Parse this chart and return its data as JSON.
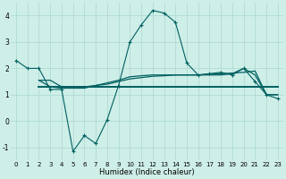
{
  "xlabel": "Humidex (Indice chaleur)",
  "bg_color": "#ceeee8",
  "grid_color": "#aad8d0",
  "line_color": "#006060",
  "xlim": [
    -0.5,
    23.5
  ],
  "ylim": [
    -1.5,
    4.5
  ],
  "yticks": [
    -1,
    0,
    1,
    2,
    3,
    4
  ],
  "xticks": [
    0,
    1,
    2,
    3,
    4,
    5,
    6,
    7,
    8,
    9,
    10,
    11,
    12,
    13,
    14,
    15,
    16,
    17,
    18,
    19,
    20,
    21,
    22,
    23
  ],
  "curve1_x": [
    0,
    1,
    2,
    3,
    4,
    5,
    6,
    7,
    8,
    9,
    10,
    11,
    12,
    13,
    14,
    15,
    16,
    17,
    18,
    19,
    20,
    21,
    22,
    23
  ],
  "curve1_y": [
    2.3,
    2.0,
    2.0,
    1.2,
    1.2,
    -1.15,
    -0.55,
    -0.85,
    0.05,
    1.35,
    3.0,
    3.65,
    4.2,
    4.1,
    3.75,
    2.2,
    1.75,
    1.8,
    1.85,
    1.75,
    2.0,
    1.5,
    1.0,
    0.85
  ],
  "curve2_x": [
    2,
    3,
    4,
    5,
    6,
    7,
    8,
    9,
    10,
    11,
    12,
    13,
    14,
    15,
    16,
    17,
    18,
    19,
    20,
    21,
    22,
    23
  ],
  "curve2_y": [
    1.55,
    1.55,
    1.3,
    1.3,
    1.3,
    1.35,
    1.4,
    1.5,
    1.6,
    1.65,
    1.7,
    1.72,
    1.75,
    1.75,
    1.75,
    1.78,
    1.8,
    1.82,
    1.85,
    1.9,
    1.0,
    1.0
  ],
  "curve3_x": [
    2,
    23
  ],
  "curve3_y": [
    1.3,
    1.3
  ],
  "curve4_x": [
    2,
    3,
    4,
    5,
    6,
    7,
    8,
    9,
    10,
    11,
    12,
    13,
    14,
    15,
    16,
    17,
    18,
    19,
    20,
    21,
    22,
    23
  ],
  "curve4_y": [
    1.55,
    1.3,
    1.25,
    1.25,
    1.25,
    1.35,
    1.45,
    1.55,
    1.68,
    1.72,
    1.75,
    1.75,
    1.75,
    1.75,
    1.75,
    1.75,
    1.75,
    1.8,
    2.0,
    1.75,
    1.0,
    1.0
  ],
  "xlabel_fontsize": 6.0,
  "tick_fontsize": 5.0
}
